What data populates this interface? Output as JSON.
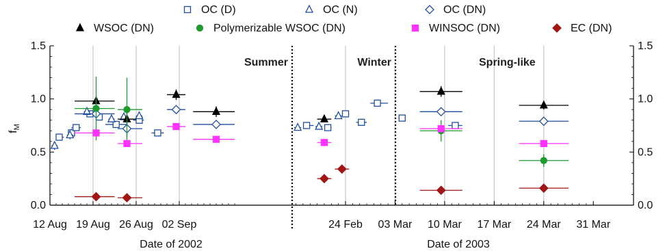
{
  "chart_data": {
    "type": "scatter",
    "ylabel": "f",
    "ylabel_sub": "M",
    "ylim": [
      0,
      1.5
    ],
    "y_ticks": [
      "0.0",
      "0.5",
      "1.0",
      "1.5"
    ],
    "grid": "vertical lines at selected dates",
    "legend_position": "top",
    "periods": [
      "Summer",
      "Winter",
      "Spring-like"
    ],
    "panels": [
      {
        "id": "2002",
        "xlabel": "Date of 2002",
        "x_ticks": [
          "12 Aug",
          "19 Aug",
          "26 Aug",
          "02 Sep"
        ],
        "xlim": [
          "2002-08-12",
          "2002-09-11"
        ]
      },
      {
        "id": "2003",
        "xlabel": "Date of 2003",
        "x_ticks": [
          "24 Feb",
          "03 Mar",
          "10 Mar",
          "17 Mar",
          "24 Mar",
          "31 Mar"
        ],
        "xlim": [
          "2003-02-16",
          "2003-03-31"
        ]
      }
    ],
    "series": [
      {
        "name": "OC (D)",
        "color": "#1f4e9e",
        "marker": "square-open",
        "points": [
          {
            "x": "2002-08-13 12:00",
            "y": 0.64,
            "x0": "2002-08-13 00:00",
            "x1": "2002-08-14 06:00",
            "e": 0.03
          },
          {
            "x": "2002-08-15 12:00",
            "y": 0.68,
            "x0": "2002-08-15 00:00",
            "x1": "2002-08-16 00:00",
            "e": 0.04
          },
          {
            "x": "2002-08-16 06:00",
            "y": 0.73,
            "x0": "2002-08-15 12:00",
            "x1": "2002-08-17 00:00",
            "e": 0.03
          },
          {
            "x": "2002-08-18 12:00",
            "y": 0.86,
            "x0": "2002-08-17 12:00",
            "x1": "2002-08-19 12:00",
            "e": 0.03
          },
          {
            "x": "2002-08-20 00:00",
            "y": 0.83,
            "x0": "2002-08-19 12:00",
            "x1": "2002-08-20 12:00",
            "e": 0.03
          },
          {
            "x": "2002-08-22 18:00",
            "y": 0.76,
            "x0": "2002-08-21 00:00",
            "x1": "2002-08-24 12:00",
            "e": 0.03
          },
          {
            "x": "2002-08-26 12:00",
            "y": 0.8,
            "x0": "2002-08-25 12:00",
            "x1": "2002-08-27 06:00",
            "e": 0.03
          },
          {
            "x": "2002-08-29 12:00",
            "y": 0.68,
            "x0": "2002-08-28 12:00",
            "x1": "2002-08-30 12:00",
            "e": 0.02
          },
          {
            "x": "2003-02-18 12:00",
            "y": 0.75,
            "x0": "2003-02-18 00:00",
            "x1": "2003-02-19 12:00",
            "e": 0.02
          },
          {
            "x": "2003-02-21 12:00",
            "y": 0.73,
            "x0": "2003-02-21 00:00",
            "x1": "2003-02-22 00:00",
            "e": 0.02
          },
          {
            "x": "2003-02-24 00:00",
            "y": 0.86,
            "x0": "2003-02-23 12:00",
            "x1": "2003-02-24 12:00",
            "e": 0.02
          },
          {
            "x": "2003-02-26 06:00",
            "y": 0.78,
            "x0": "2003-02-25 12:00",
            "x1": "2003-02-27 00:00",
            "e": 0.02
          },
          {
            "x": "2003-02-28 12:00",
            "y": 0.96,
            "x0": "2003-02-27 12:00",
            "x1": "2003-03-02 00:00",
            "e": 0.01
          },
          {
            "x": "2003-03-04 00:00",
            "y": 0.82,
            "x0": "2003-03-03 12:00",
            "x1": "2003-03-04 12:00",
            "e": 0.01
          },
          {
            "x": "2003-03-11 12:00",
            "y": 0.75,
            "x0": "2003-03-10 12:00",
            "x1": "2003-03-12 12:00",
            "e": 0.01
          }
        ]
      },
      {
        "name": "OC (N)",
        "color": "#1f4e9e",
        "marker": "triangle-open",
        "points": [
          {
            "x": "2002-08-12 18:00",
            "y": 0.56,
            "x0": "2002-08-12 06:00",
            "x1": "2002-08-13 06:00",
            "e": 0.04
          },
          {
            "x": "2002-08-15 06:00",
            "y": 0.66,
            "x0": "2002-08-14 18:00",
            "x1": "2002-08-15 18:00",
            "e": 0.04
          },
          {
            "x": "2002-08-18 00:00",
            "y": 0.88,
            "x0": "2002-08-17 12:00",
            "x1": "2002-08-18 12:00",
            "e": 0.03
          },
          {
            "x": "2002-08-22 00:00",
            "y": 0.81,
            "x0": "2002-08-21 12:00",
            "x1": "2002-08-22 12:00",
            "e": 0.03
          },
          {
            "x": "2002-08-24 00:00",
            "y": 0.83,
            "x0": "2002-08-23 12:00",
            "x1": "2002-08-24 12:00",
            "e": 0.03
          },
          {
            "x": "2002-08-26 12:00",
            "y": 0.84,
            "x0": "2002-08-26 00:00",
            "x1": "2002-08-27 00:00",
            "e": 0.03
          },
          {
            "x": "2003-02-17 06:00",
            "y": 0.73,
            "x0": "2003-02-16 18:00",
            "x1": "2003-02-17 18:00",
            "e": 0.02
          },
          {
            "x": "2003-02-20 06:00",
            "y": 0.74,
            "x0": "2003-02-19 18:00",
            "x1": "2003-02-20 18:00",
            "e": 0.02
          },
          {
            "x": "2003-02-23 00:00",
            "y": 0.84,
            "x0": "2003-02-22 12:00",
            "x1": "2003-02-23 12:00",
            "e": 0.02
          }
        ]
      },
      {
        "name": "OC (DN)",
        "color": "#1f4e9e",
        "marker": "diamond-open",
        "points": [
          {
            "x": "2002-08-19 12:00",
            "y": 0.86,
            "x0": "2002-08-16 00:00",
            "x1": "2002-08-22 12:00",
            "e": 0.03
          },
          {
            "x": "2002-08-24 12:00",
            "y": 0.72,
            "x0": "2002-08-23 00:00",
            "x1": "2002-08-27 00:00",
            "e": 0.08
          },
          {
            "x": "2002-09-01 12:00",
            "y": 0.9,
            "x0": "2002-08-31 00:00",
            "x1": "2002-09-03 00:00",
            "e": 0.03
          },
          {
            "x": "2002-09-08 00:00",
            "y": 0.76,
            "x0": "2002-09-04 06:00",
            "x1": "2002-09-11 00:00",
            "e": 0.02
          },
          {
            "x": "2003-03-09 12:00",
            "y": 0.88,
            "x0": "2003-03-06 12:00",
            "x1": "2003-03-12 12:00",
            "e": 0.02
          },
          {
            "x": "2003-03-24 00:00",
            "y": 0.79,
            "x0": "2003-03-20 12:00",
            "x1": "2003-03-27 12:00",
            "e": 0.01
          }
        ]
      },
      {
        "name": "WSOC (DN)",
        "color": "#000000",
        "marker": "triangle-filled",
        "points": [
          {
            "x": "2002-08-19 12:00",
            "y": 0.98,
            "x0": "2002-08-16 00:00",
            "x1": "2002-08-22 12:00",
            "e": 0.05
          },
          {
            "x": "2002-08-24 12:00",
            "y": 0.81,
            "x0": "2002-08-23 00:00",
            "x1": "2002-08-26 00:00",
            "e": 0.06
          },
          {
            "x": "2002-09-01 12:00",
            "y": 1.04,
            "x0": "2002-08-31 00:00",
            "x1": "2002-09-03 00:00",
            "e": 0.05
          },
          {
            "x": "2002-09-08 00:00",
            "y": 0.88,
            "x0": "2002-09-04 06:00",
            "x1": "2002-09-11 00:00",
            "e": 0.05
          },
          {
            "x": "2003-02-21 00:00",
            "y": 0.81,
            "x0": "2003-02-20 00:00",
            "x1": "2003-02-22 00:00",
            "e": 0.03
          },
          {
            "x": "2003-03-09 12:00",
            "y": 1.07,
            "x0": "2003-03-06 12:00",
            "x1": "2003-03-12 12:00",
            "e": 0.05
          },
          {
            "x": "2003-03-24 00:00",
            "y": 0.94,
            "x0": "2003-03-20 12:00",
            "x1": "2003-03-27 12:00",
            "e": 0.04
          }
        ]
      },
      {
        "name": "Polymerizable WSOC (DN)",
        "color": "#1f9a2e",
        "marker": "circle-filled",
        "points": [
          {
            "x": "2002-08-19 12:00",
            "y": 0.91,
            "x0": "2002-08-16 00:00",
            "x1": "2002-08-22 12:00",
            "e": 0.3
          },
          {
            "x": "2002-08-24 12:00",
            "y": 0.9,
            "x0": "2002-08-23 00:00",
            "x1": "2002-08-27 00:00",
            "e": 0.3
          },
          {
            "x": "2003-03-09 12:00",
            "y": 0.7,
            "x0": "2003-03-06 12:00",
            "x1": "2003-03-12 12:00",
            "e": 0.1
          },
          {
            "x": "2003-03-24 00:00",
            "y": 0.42,
            "x0": "2003-03-20 12:00",
            "x1": "2003-03-27 12:00",
            "e": 0.06
          }
        ]
      },
      {
        "name": "WINSOC (DN)",
        "color": "#ff33ff",
        "marker": "square-filled",
        "points": [
          {
            "x": "2002-08-19 12:00",
            "y": 0.68,
            "x0": "2002-08-16 00:00",
            "x1": "2002-08-22 12:00",
            "e": 0.01
          },
          {
            "x": "2002-08-24 12:00",
            "y": 0.58,
            "x0": "2002-08-23 00:00",
            "x1": "2002-08-27 00:00",
            "e": 0.02
          },
          {
            "x": "2002-09-01 12:00",
            "y": 0.74,
            "x0": "2002-08-31 00:00",
            "x1": "2002-09-03 00:00",
            "e": 0.01
          },
          {
            "x": "2002-09-08 00:00",
            "y": 0.62,
            "x0": "2002-09-04 06:00",
            "x1": "2002-09-11 00:00",
            "e": 0.02
          },
          {
            "x": "2003-02-21 00:00",
            "y": 0.59,
            "x0": "2003-02-20 00:00",
            "x1": "2003-02-22 00:00",
            "e": 0.01
          },
          {
            "x": "2003-03-09 12:00",
            "y": 0.72,
            "x0": "2003-03-06 12:00",
            "x1": "2003-03-12 12:00",
            "e": 0.01
          },
          {
            "x": "2003-03-24 00:00",
            "y": 0.58,
            "x0": "2003-03-20 12:00",
            "x1": "2003-03-27 12:00",
            "e": 0.02
          }
        ]
      },
      {
        "name": "EC (DN)",
        "color": "#a11515",
        "marker": "diamond-filled",
        "points": [
          {
            "x": "2002-08-19 12:00",
            "y": 0.08,
            "x0": "2002-08-16 00:00",
            "x1": "2002-08-22 12:00",
            "e": 0.0
          },
          {
            "x": "2002-08-24 12:00",
            "y": 0.07,
            "x0": "2002-08-23 00:00",
            "x1": "2002-08-27 00:00",
            "e": 0.0
          },
          {
            "x": "2003-02-21 00:00",
            "y": 0.25,
            "x0": "2003-02-20 00:00",
            "x1": "2003-02-22 00:00",
            "e": 0.0
          },
          {
            "x": "2003-02-23 12:00",
            "y": 0.34,
            "x0": "2003-02-22 12:00",
            "x1": "2003-02-24 12:00",
            "e": 0.0
          },
          {
            "x": "2003-03-09 12:00",
            "y": 0.14,
            "x0": "2003-03-06 12:00",
            "x1": "2003-03-12 12:00",
            "e": 0.0
          },
          {
            "x": "2003-03-24 00:00",
            "y": 0.16,
            "x0": "2003-03-20 12:00",
            "x1": "2003-03-27 12:00",
            "e": 0.0
          }
        ]
      }
    ]
  }
}
